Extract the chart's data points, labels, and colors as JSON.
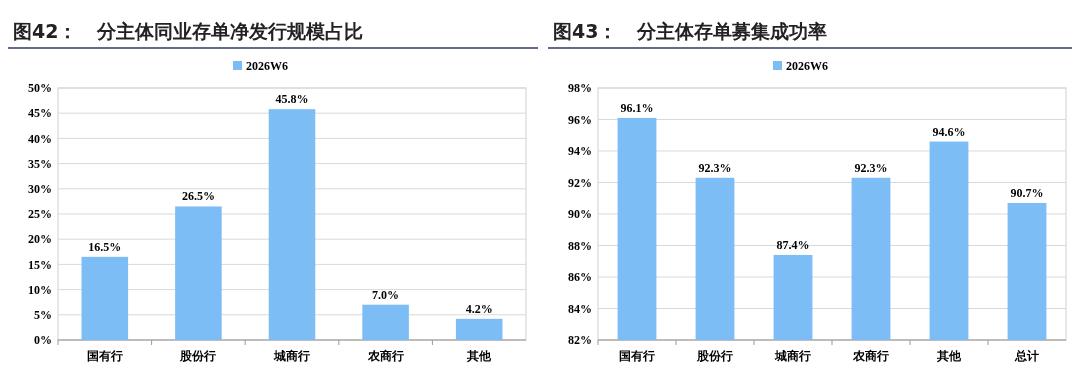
{
  "chart_data": [
    {
      "type": "bar",
      "title": "图42：   分主体同业存单净发行规模占比",
      "categories": [
        "国有行",
        "股份行",
        "城商行",
        "农商行",
        "其他"
      ],
      "series": [
        {
          "name": "2026W6",
          "color": "#7dbdf5",
          "values": [
            16.5,
            26.5,
            45.8,
            7.0,
            4.2
          ],
          "value_labels": [
            "16.5%",
            "26.5%",
            "45.8%",
            "7.0%",
            "4.2%"
          ]
        }
      ],
      "ylim": [
        0,
        50
      ],
      "yticks": [
        {
          "value": 0,
          "label": "0%"
        },
        {
          "value": 5,
          "label": "5%"
        },
        {
          "value": 10,
          "label": "10%"
        },
        {
          "value": 15,
          "label": "15%"
        },
        {
          "value": 20,
          "label": "20%"
        },
        {
          "value": 25,
          "label": "25%"
        },
        {
          "value": 30,
          "label": "30%"
        },
        {
          "value": 35,
          "label": "35%"
        },
        {
          "value": 40,
          "label": "40%"
        },
        {
          "value": 45,
          "label": "45%"
        },
        {
          "value": 50,
          "label": "50%"
        }
      ],
      "grid": "y",
      "legend": "top"
    },
    {
      "type": "bar",
      "title": "图43：   分主体存单募集成功率",
      "categories": [
        "国有行",
        "股份行",
        "城商行",
        "农商行",
        "其他",
        "总计"
      ],
      "series": [
        {
          "name": "2026W6",
          "color": "#7dbdf5",
          "values": [
            96.1,
            92.3,
            87.4,
            92.3,
            94.6,
            90.7
          ],
          "value_labels": [
            "96.1%",
            "92.3%",
            "87.4%",
            "92.3%",
            "94.6%",
            "90.7%"
          ]
        }
      ],
      "ylim": [
        82,
        98
      ],
      "yticks": [
        {
          "value": 82,
          "label": "82%"
        },
        {
          "value": 84,
          "label": "84%"
        },
        {
          "value": 86,
          "label": "86%"
        },
        {
          "value": 88,
          "label": "88%"
        },
        {
          "value": 90,
          "label": "90%"
        },
        {
          "value": 92,
          "label": "92%"
        },
        {
          "value": 94,
          "label": "94%"
        },
        {
          "value": 96,
          "label": "96%"
        },
        {
          "value": 98,
          "label": "98%"
        }
      ],
      "grid": "y",
      "legend": "top"
    }
  ]
}
